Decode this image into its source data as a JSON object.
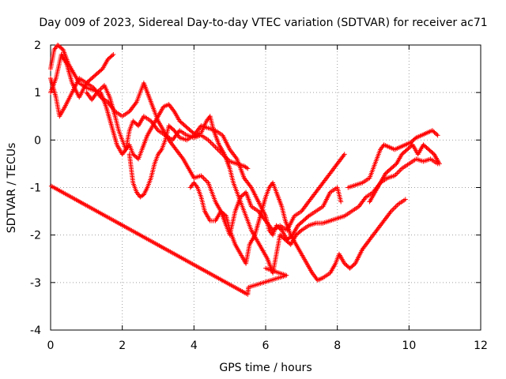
{
  "chart_data": {
    "type": "scatter",
    "title": "Day 009 of 2023, Sidereal Day-to-day VTEC variation (SDTVAR) for receiver ac71",
    "xlabel": "GPS time / hours",
    "ylabel": "SDTVAR / TECUs",
    "xlim": [
      0,
      12
    ],
    "ylim": [
      -4,
      2
    ],
    "x_ticks": [
      "0",
      "2",
      "4",
      "6",
      "8",
      "10",
      "12"
    ],
    "y_ticks": [
      "-4",
      "-3",
      "-2",
      "-1",
      "0",
      "1",
      "2"
    ],
    "grid": true,
    "marker": "+",
    "color": "#ff0000",
    "series": [
      {
        "points": [
          [
            0.0,
            1.5
          ],
          [
            0.1,
            1.9
          ],
          [
            0.2,
            2.0
          ],
          [
            0.35,
            1.9
          ],
          [
            0.5,
            1.6
          ],
          [
            0.65,
            1.4
          ],
          [
            0.8,
            1.2
          ],
          [
            1.0,
            1.1
          ],
          [
            1.2,
            1.05
          ],
          [
            1.4,
            1.0
          ],
          [
            1.55,
            0.7
          ],
          [
            1.7,
            0.3
          ],
          [
            1.85,
            -0.1
          ],
          [
            2.0,
            -0.3
          ],
          [
            2.1,
            -0.2
          ],
          [
            2.2,
            0.2
          ],
          [
            2.3,
            0.4
          ],
          [
            2.45,
            0.3
          ],
          [
            2.6,
            0.5
          ],
          [
            2.8,
            0.4
          ],
          [
            3.0,
            0.2
          ],
          [
            3.2,
            0.1
          ],
          [
            3.4,
            0.0
          ],
          [
            3.6,
            0.2
          ],
          [
            3.8,
            0.1
          ],
          [
            4.0,
            0.05
          ],
          [
            4.2,
            0.1
          ],
          [
            4.4,
            0.0
          ],
          [
            4.6,
            -0.15
          ],
          [
            4.8,
            -0.3
          ],
          [
            5.0,
            -0.45
          ],
          [
            5.2,
            -0.5
          ],
          [
            5.4,
            -0.55
          ],
          [
            5.5,
            -0.6
          ]
        ]
      },
      {
        "points": [
          [
            0.0,
            1.0
          ],
          [
            0.15,
            1.3
          ],
          [
            0.3,
            1.8
          ],
          [
            0.45,
            1.6
          ],
          [
            0.6,
            1.2
          ],
          [
            0.8,
            0.9
          ],
          [
            1.0,
            1.2
          ],
          [
            1.15,
            1.3
          ],
          [
            1.3,
            1.4
          ],
          [
            1.45,
            1.5
          ],
          [
            1.6,
            1.7
          ],
          [
            1.75,
            1.8
          ]
        ]
      },
      {
        "points": [
          [
            0.0,
            1.3
          ],
          [
            0.15,
            0.9
          ],
          [
            0.25,
            0.5
          ],
          [
            0.4,
            0.7
          ],
          [
            0.6,
            1.0
          ],
          [
            0.8,
            1.3
          ],
          [
            1.0,
            1.2
          ],
          [
            1.2,
            1.1
          ],
          [
            1.4,
            0.9
          ],
          [
            1.6,
            0.8
          ],
          [
            1.8,
            0.6
          ],
          [
            2.0,
            0.5
          ],
          [
            2.2,
            0.6
          ],
          [
            2.4,
            0.8
          ],
          [
            2.5,
            1.0
          ],
          [
            2.6,
            1.2
          ],
          [
            2.75,
            0.9
          ],
          [
            2.9,
            0.6
          ],
          [
            3.0,
            0.4
          ],
          [
            3.15,
            0.2
          ],
          [
            3.3,
            0.0
          ],
          [
            3.5,
            -0.2
          ],
          [
            3.7,
            -0.4
          ],
          [
            3.85,
            -0.6
          ],
          [
            4.0,
            -0.8
          ],
          [
            4.2,
            -0.75
          ],
          [
            4.4,
            -0.9
          ],
          [
            4.5,
            -1.1
          ],
          [
            4.6,
            -1.3
          ],
          [
            4.75,
            -1.5
          ],
          [
            4.9,
            -1.8
          ],
          [
            5.0,
            -2.0
          ],
          [
            5.15,
            -1.5
          ],
          [
            5.3,
            -1.2
          ],
          [
            5.45,
            -1.1
          ],
          [
            5.6,
            -1.4
          ],
          [
            5.8,
            -1.5
          ],
          [
            6.0,
            -1.7
          ],
          [
            6.2,
            -1.9
          ],
          [
            6.4,
            -1.8
          ],
          [
            6.6,
            -1.9
          ],
          [
            6.8,
            -1.6
          ],
          [
            7.0,
            -1.5
          ],
          [
            7.2,
            -1.3
          ],
          [
            7.4,
            -1.1
          ],
          [
            7.6,
            -0.9
          ],
          [
            7.8,
            -0.7
          ],
          [
            8.0,
            -0.5
          ],
          [
            8.2,
            -0.3
          ]
        ]
      },
      {
        "points": [
          [
            1.0,
            1.0
          ],
          [
            1.15,
            0.85
          ],
          [
            1.3,
            1.0
          ],
          [
            1.5,
            1.15
          ],
          [
            1.65,
            0.9
          ],
          [
            1.8,
            0.5
          ],
          [
            1.9,
            0.2
          ],
          [
            2.0,
            0.0
          ],
          [
            2.1,
            -0.2
          ],
          [
            2.2,
            -0.1
          ],
          [
            2.3,
            -0.3
          ],
          [
            2.45,
            -0.4
          ],
          [
            2.55,
            -0.2
          ],
          [
            2.7,
            0.1
          ],
          [
            2.85,
            0.3
          ],
          [
            3.0,
            0.5
          ],
          [
            3.15,
            0.7
          ],
          [
            3.3,
            0.75
          ],
          [
            3.45,
            0.6
          ],
          [
            3.6,
            0.4
          ],
          [
            3.75,
            0.3
          ],
          [
            3.9,
            0.2
          ],
          [
            4.05,
            0.1
          ],
          [
            4.2,
            0.15
          ],
          [
            4.35,
            0.4
          ],
          [
            4.45,
            0.5
          ],
          [
            4.55,
            0.2
          ],
          [
            4.7,
            -0.1
          ],
          [
            4.85,
            -0.3
          ],
          [
            5.0,
            -0.6
          ],
          [
            5.1,
            -0.9
          ],
          [
            5.2,
            -1.1
          ],
          [
            5.3,
            -1.3
          ],
          [
            5.4,
            -1.5
          ],
          [
            5.5,
            -1.7
          ],
          [
            5.6,
            -1.9
          ],
          [
            5.75,
            -2.1
          ],
          [
            5.9,
            -2.3
          ],
          [
            6.05,
            -2.5
          ],
          [
            6.2,
            -2.8
          ],
          [
            6.3,
            -2.4
          ],
          [
            6.4,
            -2.0
          ],
          [
            6.55,
            -2.1
          ],
          [
            6.7,
            -2.2
          ],
          [
            6.85,
            -2.0
          ],
          [
            7.0,
            -1.9
          ],
          [
            7.2,
            -1.8
          ],
          [
            7.4,
            -1.75
          ],
          [
            7.6,
            -1.75
          ],
          [
            7.8,
            -1.7
          ],
          [
            8.0,
            -1.65
          ],
          [
            8.2,
            -1.6
          ],
          [
            8.4,
            -1.5
          ],
          [
            8.6,
            -1.4
          ],
          [
            8.8,
            -1.2
          ],
          [
            9.0,
            -1.1
          ],
          [
            9.2,
            -0.9
          ],
          [
            9.4,
            -0.8
          ],
          [
            9.6,
            -0.75
          ],
          [
            9.8,
            -0.6
          ],
          [
            10.0,
            -0.5
          ],
          [
            10.2,
            -0.4
          ],
          [
            10.4,
            -0.45
          ],
          [
            10.6,
            -0.4
          ],
          [
            10.8,
            -0.5
          ]
        ]
      },
      {
        "points": [
          [
            2.2,
            -0.3
          ],
          [
            2.3,
            -0.9
          ],
          [
            2.4,
            -1.1
          ],
          [
            2.5,
            -1.2
          ],
          [
            2.6,
            -1.15
          ],
          [
            2.7,
            -1.0
          ],
          [
            2.8,
            -0.8
          ],
          [
            2.9,
            -0.5
          ],
          [
            3.0,
            -0.3
          ],
          [
            3.1,
            -0.2
          ],
          [
            3.2,
            0.0
          ],
          [
            3.3,
            0.3
          ],
          [
            3.45,
            0.2
          ],
          [
            3.6,
            0.05
          ],
          [
            3.8,
            0.0
          ],
          [
            4.0,
            0.1
          ],
          [
            4.2,
            0.3
          ],
          [
            4.4,
            0.25
          ],
          [
            4.6,
            0.2
          ],
          [
            4.8,
            0.1
          ],
          [
            5.0,
            -0.2
          ],
          [
            5.2,
            -0.4
          ],
          [
            5.4,
            -0.8
          ],
          [
            5.6,
            -1.0
          ],
          [
            5.8,
            -1.3
          ],
          [
            6.0,
            -1.6
          ],
          [
            6.1,
            -1.9
          ],
          [
            6.2,
            -2.0
          ],
          [
            6.3,
            -1.8
          ],
          [
            6.45,
            -1.9
          ],
          [
            6.6,
            -2.1
          ],
          [
            6.75,
            -2.0
          ],
          [
            6.9,
            -1.8
          ],
          [
            7.05,
            -1.7
          ],
          [
            7.2,
            -1.6
          ],
          [
            7.4,
            -1.5
          ],
          [
            7.6,
            -1.4
          ],
          [
            7.8,
            -1.1
          ],
          [
            8.0,
            -1.0
          ],
          [
            8.1,
            -1.3
          ]
        ]
      },
      {
        "points": [
          [
            3.9,
            -1.0
          ],
          [
            4.0,
            -0.9
          ],
          [
            4.1,
            -1.0
          ],
          [
            4.2,
            -1.2
          ],
          [
            4.3,
            -1.5
          ],
          [
            4.45,
            -1.7
          ],
          [
            4.6,
            -1.7
          ],
          [
            4.75,
            -1.5
          ],
          [
            4.9,
            -1.6
          ],
          [
            5.0,
            -1.9
          ],
          [
            5.15,
            -2.2
          ],
          [
            5.3,
            -2.4
          ],
          [
            5.45,
            -2.6
          ],
          [
            5.55,
            -2.2
          ],
          [
            5.7,
            -2.0
          ],
          [
            5.85,
            -1.6
          ],
          [
            6.0,
            -1.2
          ],
          [
            6.1,
            -1.0
          ],
          [
            6.2,
            -0.9
          ],
          [
            6.3,
            -1.1
          ],
          [
            6.45,
            -1.4
          ],
          [
            6.55,
            -1.7
          ],
          [
            6.7,
            -2.0
          ],
          [
            6.85,
            -2.2
          ],
          [
            7.0,
            -2.4
          ],
          [
            7.15,
            -2.6
          ],
          [
            7.3,
            -2.8
          ],
          [
            7.45,
            -2.95
          ],
          [
            7.6,
            -2.9
          ],
          [
            7.8,
            -2.8
          ],
          [
            7.95,
            -2.6
          ],
          [
            8.05,
            -2.4
          ],
          [
            8.2,
            -2.6
          ],
          [
            8.35,
            -2.7
          ],
          [
            8.5,
            -2.6
          ],
          [
            8.7,
            -2.3
          ],
          [
            8.9,
            -2.1
          ],
          [
            9.1,
            -1.9
          ],
          [
            9.3,
            -1.7
          ],
          [
            9.5,
            -1.5
          ],
          [
            9.7,
            -1.35
          ],
          [
            9.9,
            -1.25
          ]
        ]
      },
      {
        "points": [
          [
            8.3,
            -1.0
          ],
          [
            8.5,
            -0.95
          ],
          [
            8.7,
            -0.9
          ],
          [
            8.9,
            -0.8
          ],
          [
            9.0,
            -0.6
          ],
          [
            9.1,
            -0.4
          ],
          [
            9.2,
            -0.2
          ],
          [
            9.3,
            -0.1
          ],
          [
            9.45,
            -0.15
          ],
          [
            9.6,
            -0.2
          ],
          [
            9.75,
            -0.15
          ],
          [
            9.9,
            -0.1
          ],
          [
            10.05,
            -0.05
          ],
          [
            10.2,
            0.05
          ],
          [
            10.35,
            0.1
          ],
          [
            10.5,
            0.15
          ],
          [
            10.65,
            0.2
          ],
          [
            10.8,
            0.1
          ]
        ]
      },
      {
        "points": [
          [
            8.9,
            -1.3
          ],
          [
            9.05,
            -1.1
          ],
          [
            9.2,
            -0.9
          ],
          [
            9.35,
            -0.7
          ],
          [
            9.5,
            -0.6
          ],
          [
            9.65,
            -0.5
          ],
          [
            9.8,
            -0.3
          ],
          [
            9.95,
            -0.2
          ],
          [
            10.1,
            -0.1
          ],
          [
            10.25,
            -0.3
          ],
          [
            10.4,
            -0.1
          ],
          [
            10.55,
            -0.2
          ],
          [
            10.7,
            -0.3
          ],
          [
            10.85,
            -0.5
          ]
        ]
      },
      {
        "points": [
          [
            0.02,
            -0.97
          ],
          [
            5.5,
            -3.25
          ],
          [
            5.52,
            -3.1
          ],
          [
            6.58,
            -2.85
          ],
          [
            6.0,
            -2.7
          ]
        ]
      }
    ]
  }
}
